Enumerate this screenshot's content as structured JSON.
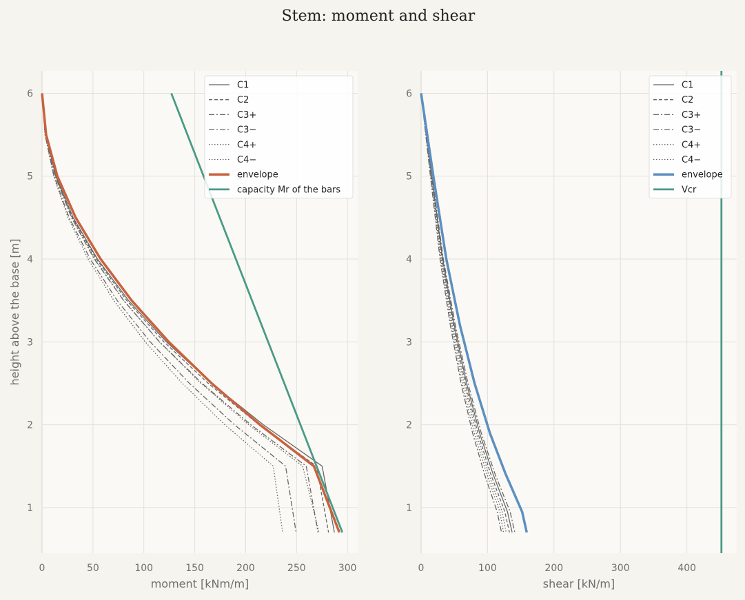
{
  "figure": {
    "title": "Stem: moment and shear",
    "colors": {
      "background": "#f5f4ee",
      "plot_background": "#faf9f5",
      "grid": "#e3e1dc",
      "case_lines": "#666666",
      "moment_envelope": "#c8623e",
      "shear_envelope": "#5b8fc0",
      "capacity": "#4b9a88"
    }
  },
  "chart_data": [
    {
      "type": "line",
      "xlabel": "moment [kNm/m]",
      "ylabel": "height above the base [m]",
      "xlim": [
        0,
        310
      ],
      "ylim": [
        0.45,
        6.27
      ],
      "xticks": [
        0,
        50,
        100,
        150,
        200,
        250,
        300
      ],
      "yticks": [
        1,
        2,
        3,
        4,
        5,
        6
      ],
      "grid": true,
      "legend_position": "top-right",
      "series": [
        {
          "name": "C1",
          "style": "solid",
          "width": 1.3,
          "x": [
            0,
            3.5,
            13.6,
            30.6,
            54.4,
            84.9,
            122.2,
            166.4,
            217.4,
            275.1,
            287.1
          ],
          "y": [
            6.0,
            5.5,
            5.0,
            4.5,
            4.0,
            3.5,
            3.0,
            2.5,
            2.0,
            1.5,
            0.7
          ]
        },
        {
          "name": "C2",
          "style": "dashed",
          "width": 1.3,
          "x": [
            0,
            3.4,
            13.4,
            30.0,
            53.3,
            83.2,
            119.8,
            163.1,
            213.0,
            269.6,
            281.4
          ],
          "y": [
            6.0,
            5.5,
            5.0,
            4.5,
            4.0,
            3.5,
            3.0,
            2.5,
            2.0,
            1.5,
            0.7
          ]
        },
        {
          "name": "C3+",
          "style": "dashdot",
          "width": 1.3,
          "x": [
            0,
            3.3,
            12.9,
            28.9,
            51.3,
            80.1,
            115.4,
            157.0,
            205.0,
            259.5,
            271.0
          ],
          "y": [
            6.0,
            5.5,
            5.0,
            4.5,
            4.0,
            3.5,
            3.0,
            2.5,
            2.0,
            1.5,
            0.7
          ]
        },
        {
          "name": "C3−",
          "style": "dashdot",
          "width": 1.3,
          "x": [
            0,
            3.0,
            11.8,
            26.6,
            47.3,
            73.8,
            106.3,
            144.7,
            189.0,
            239.2,
            249.5
          ],
          "y": [
            6.0,
            5.5,
            5.0,
            4.5,
            4.0,
            3.5,
            3.0,
            2.5,
            2.0,
            1.5,
            0.7
          ]
        },
        {
          "name": "C4+",
          "style": "dotted",
          "width": 1.3,
          "x": [
            0,
            3.4,
            13.2,
            29.4,
            51.9,
            80.5,
            115.2,
            156.0,
            203.0,
            256.0,
            272.0
          ],
          "y": [
            6.0,
            5.5,
            5.0,
            4.5,
            4.0,
            3.5,
            3.0,
            2.5,
            2.0,
            1.5,
            0.7
          ]
        },
        {
          "name": "C4−",
          "style": "dotted",
          "width": 1.3,
          "x": [
            0,
            2.9,
            11.4,
            25.5,
            45.2,
            70.5,
            101.3,
            137.7,
            179.6,
            227.1,
            236.3
          ],
          "y": [
            6.0,
            5.5,
            5.0,
            4.5,
            4.0,
            3.5,
            3.0,
            2.5,
            2.0,
            1.5,
            0.7
          ]
        },
        {
          "name": "envelope",
          "style": "solid",
          "width": 3.5,
          "color_key": "moment_envelope",
          "x": [
            0,
            4.0,
            15.0,
            33.0,
            57.5,
            88.0,
            124.5,
            166.5,
            214.0,
            267.0,
            292.0
          ],
          "y": [
            6.0,
            5.5,
            5.0,
            4.5,
            4.0,
            3.5,
            3.0,
            2.5,
            2.0,
            1.5,
            0.7
          ]
        },
        {
          "name": "capacity Mr of the bars",
          "style": "solid",
          "width": 2.8,
          "color_key": "capacity",
          "x": [
            127,
            295
          ],
          "y": [
            6.0,
            0.7
          ]
        }
      ]
    },
    {
      "type": "line",
      "xlabel": "shear [kN/m]",
      "ylabel": "",
      "xlim": [
        0,
        475
      ],
      "ylim": [
        0.45,
        6.27
      ],
      "xticks": [
        0,
        100,
        200,
        300,
        400
      ],
      "yticks": [
        1,
        2,
        3,
        4,
        5,
        6
      ],
      "grid": true,
      "legend_position": "top-right",
      "series": [
        {
          "name": "C1",
          "style": "solid",
          "width": 1.3,
          "x": [
            0,
            16.0,
            32.5,
            50.0,
            68.5,
            88.0,
            108.5,
            130.0,
            137.0
          ],
          "y": [
            6.0,
            5.0,
            4.0,
            3.2,
            2.5,
            1.9,
            1.4,
            0.95,
            0.7
          ]
        },
        {
          "name": "C2",
          "style": "dashed",
          "width": 1.3,
          "x": [
            0,
            15.5,
            31.5,
            48.5,
            66.5,
            85.5,
            105.0,
            126.0,
            133.0
          ],
          "y": [
            6.0,
            5.0,
            4.0,
            3.2,
            2.5,
            1.9,
            1.4,
            0.95,
            0.7
          ]
        },
        {
          "name": "C3+",
          "style": "dashdot",
          "width": 1.3,
          "x": [
            0,
            16.5,
            33.5,
            51.5,
            70.5,
            90.5,
            111.5,
            134.0,
            141.0
          ],
          "y": [
            6.0,
            5.0,
            4.0,
            3.2,
            2.5,
            1.9,
            1.4,
            0.95,
            0.7
          ]
        },
        {
          "name": "C3−",
          "style": "dashdot",
          "width": 1.3,
          "x": [
            0,
            14.0,
            28.5,
            44.0,
            60.0,
            77.5,
            95.5,
            114.5,
            121.0
          ],
          "y": [
            6.0,
            5.0,
            4.0,
            3.2,
            2.5,
            1.9,
            1.4,
            0.95,
            0.7
          ]
        },
        {
          "name": "C4+",
          "style": "dotted",
          "width": 1.3,
          "x": [
            0,
            15.0,
            30.5,
            47.0,
            64.5,
            83.0,
            102.0,
            122.0,
            128.0
          ],
          "y": [
            6.0,
            5.0,
            4.0,
            3.2,
            2.5,
            1.9,
            1.4,
            0.95,
            0.7
          ]
        },
        {
          "name": "C4−",
          "style": "dotted",
          "width": 1.3,
          "x": [
            0,
            14.5,
            29.5,
            45.5,
            62.0,
            80.0,
            99.0,
            118.5,
            124.0
          ],
          "y": [
            6.0,
            5.0,
            4.0,
            3.2,
            2.5,
            1.9,
            1.4,
            0.95,
            0.7
          ]
        },
        {
          "name": "envelope",
          "style": "solid",
          "width": 3.5,
          "color_key": "shear_envelope",
          "x": [
            0,
            18.5,
            38.0,
            58.5,
            80.5,
            103.5,
            127.5,
            152.0,
            159.0
          ],
          "y": [
            6.0,
            5.0,
            4.0,
            3.2,
            2.5,
            1.9,
            1.4,
            0.95,
            0.7
          ]
        },
        {
          "name": "Vcr",
          "style": "solid",
          "width": 2.8,
          "color_key": "capacity",
          "x": [
            452,
            452
          ],
          "y": [
            0.45,
            6.27
          ]
        }
      ]
    }
  ]
}
